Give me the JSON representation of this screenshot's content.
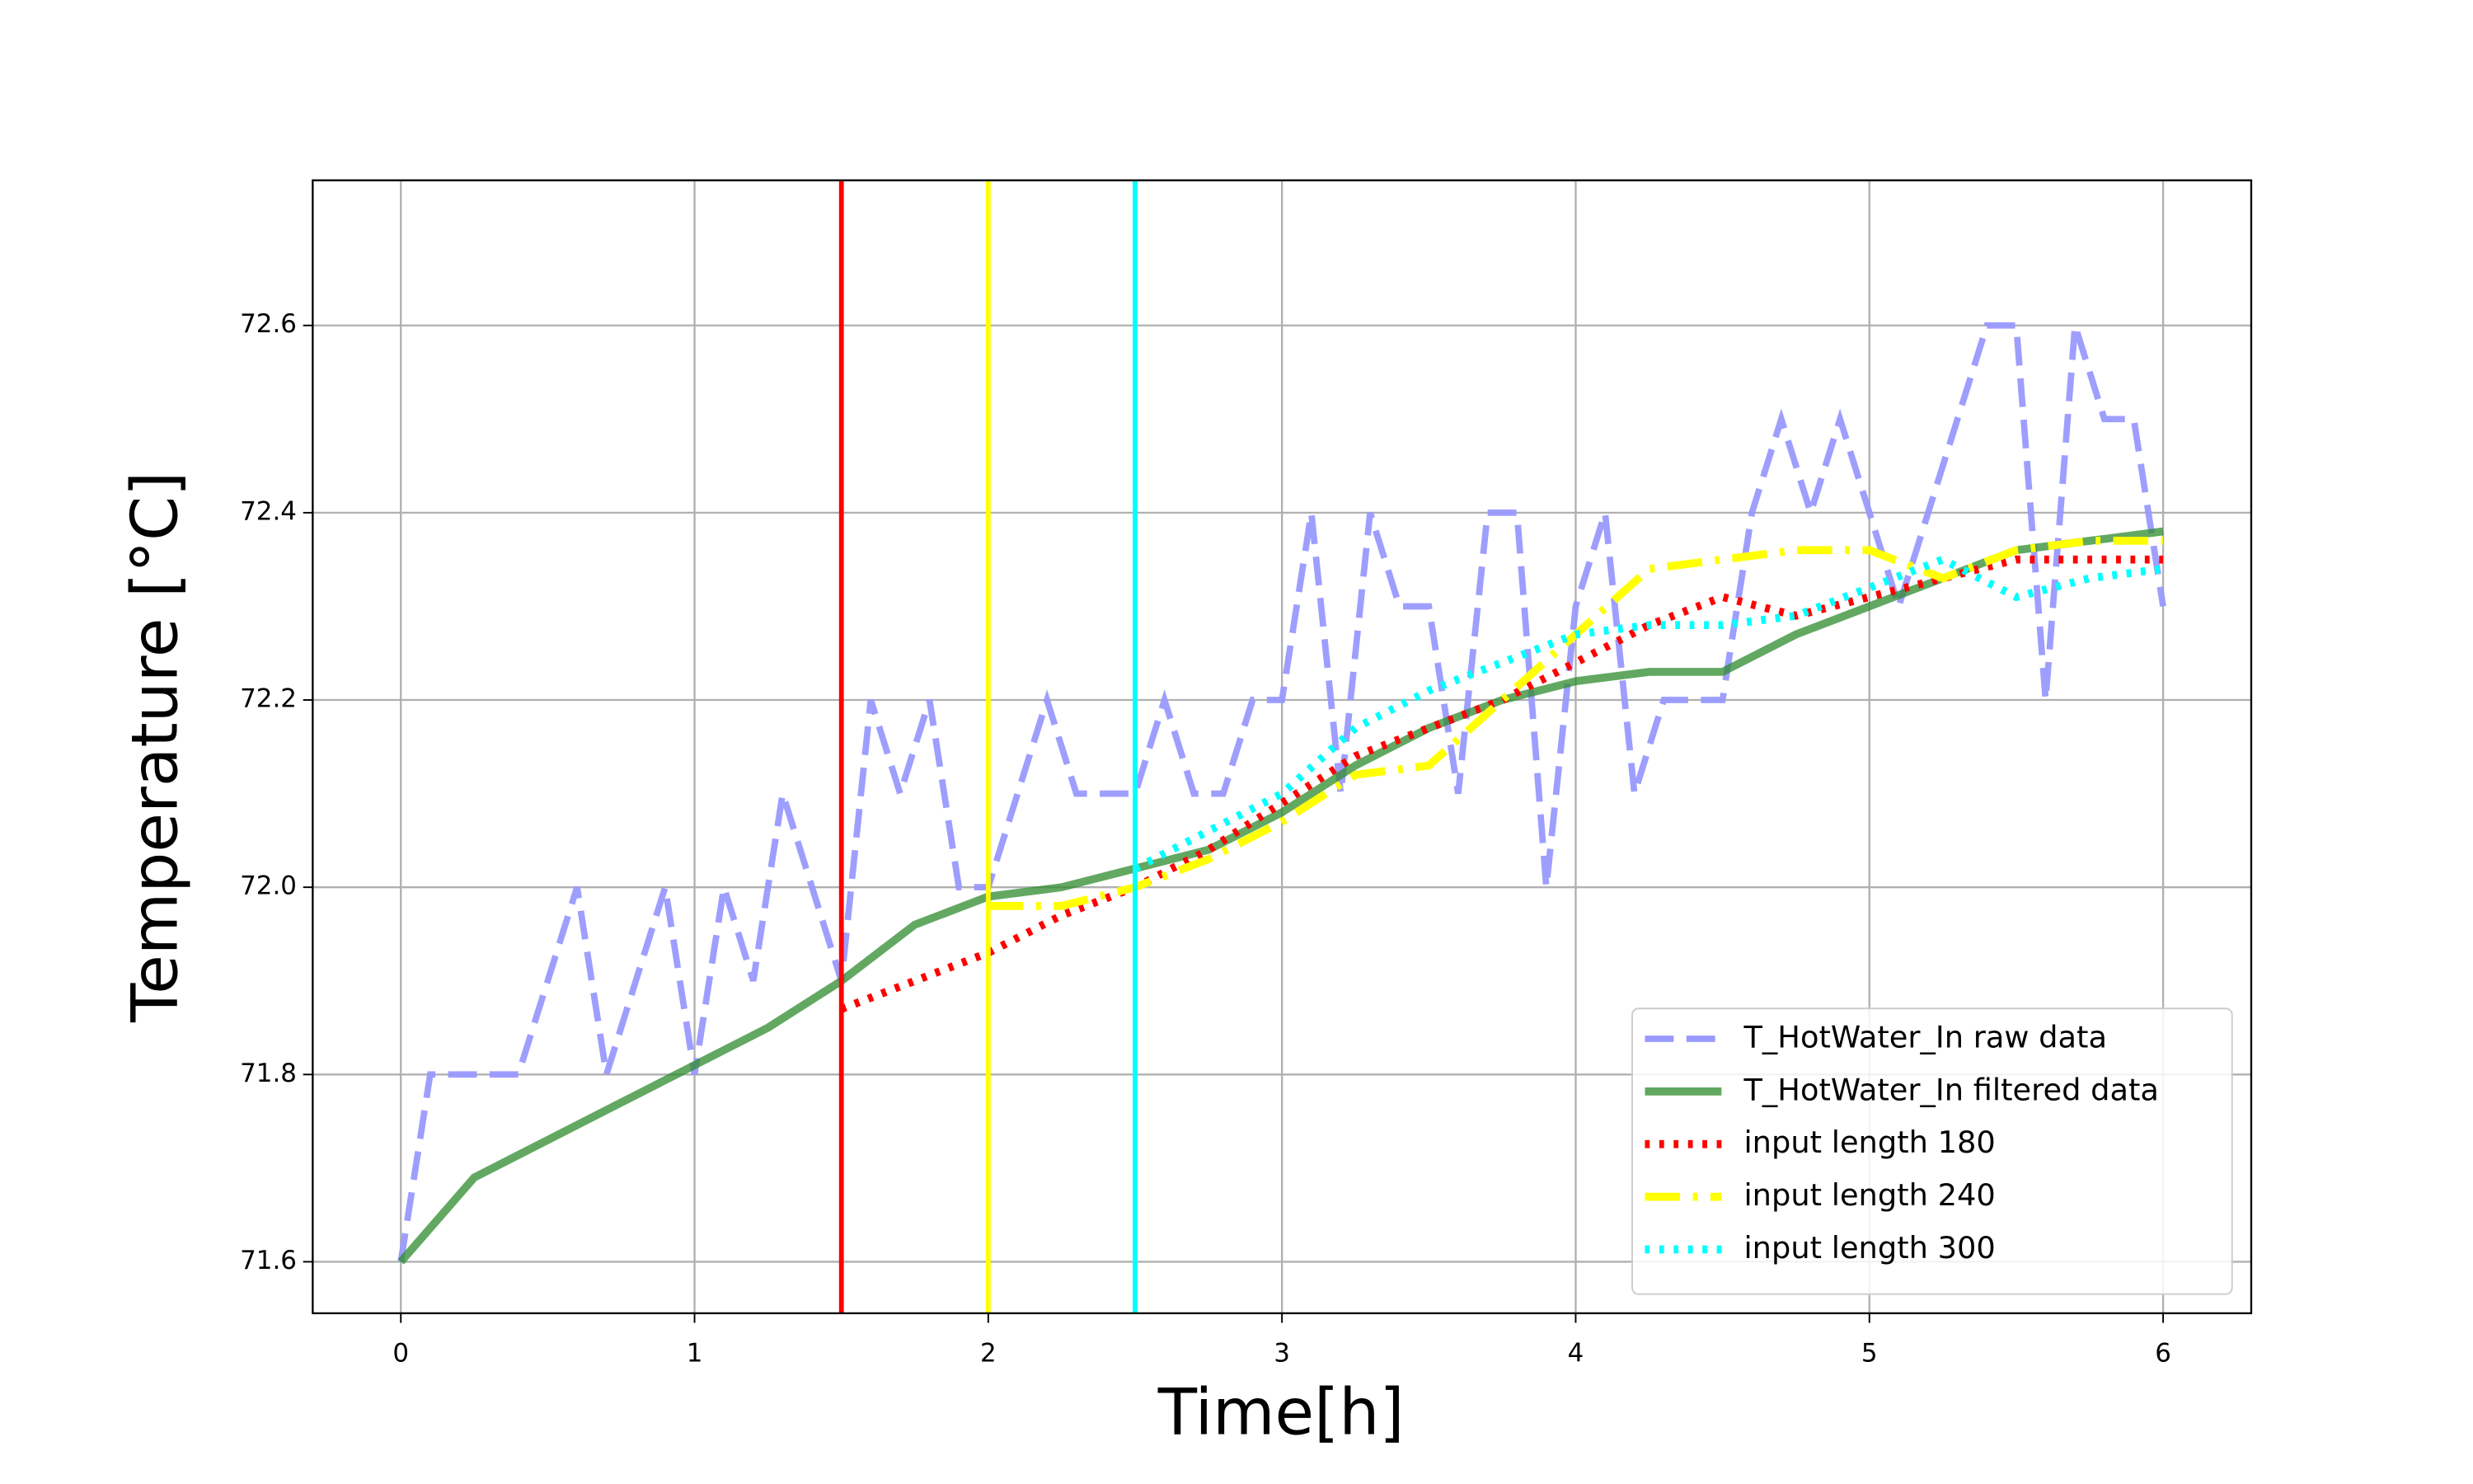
{
  "chart_data": {
    "type": "line",
    "x_label": "Time[h]",
    "y_label": "Temperature [°C]",
    "xlim": [
      -0.3,
      6.3
    ],
    "ylim": [
      71.545,
      72.755
    ],
    "xticks": [
      0,
      1,
      2,
      3,
      4,
      5,
      6
    ],
    "yticks": [
      71.6,
      71.8,
      {
        "value": 72,
        "label": "72.0"
      },
      72.2,
      72.4,
      72.6
    ],
    "grid": true,
    "legend": "lower right",
    "vlines": [
      {
        "x": 1.5,
        "color": "#ff0000"
      },
      {
        "x": 2,
        "color": "#ffff00"
      },
      {
        "x": 2.5,
        "color": "#00ffff"
      }
    ],
    "series": [
      {
        "name": "T_HotWater_In raw data",
        "color": "#9999ff",
        "style": "dashed",
        "x": [
          0,
          0.1,
          0.2,
          0.3,
          0.4,
          0.5,
          0.6,
          0.7,
          0.8,
          0.9,
          1,
          1.1,
          1.2,
          1.3,
          1.4,
          1.5,
          1.6,
          1.7,
          1.8,
          1.9,
          2,
          2.1,
          2.2,
          2.3,
          2.4,
          2.5,
          2.6,
          2.7,
          2.8,
          2.9,
          3,
          3.1,
          3.2,
          3.3,
          3.4,
          3.5,
          3.6,
          3.7,
          3.8,
          3.9,
          4,
          4.1,
          4.2,
          4.3,
          4.4,
          4.5,
          4.6,
          4.7,
          4.8,
          4.9,
          5,
          5.1,
          5.2,
          5.3,
          5.4,
          5.5,
          5.6,
          5.7,
          5.8,
          5.9,
          6
        ],
        "values": [
          71.6,
          71.8,
          71.8,
          71.8,
          71.8,
          71.9,
          72.0,
          71.8,
          71.9,
          72.0,
          71.8,
          72.0,
          71.9,
          72.1,
          72.0,
          71.9,
          72.2,
          72.1,
          72.2,
          72.0,
          72.0,
          72.1,
          72.2,
          72.1,
          72.1,
          72.1,
          72.2,
          72.1,
          72.1,
          72.2,
          72.2,
          72.4,
          72.1,
          72.4,
          72.3,
          72.3,
          72.1,
          72.4,
          72.4,
          72.0,
          72.3,
          72.4,
          72.1,
          72.2,
          72.2,
          72.2,
          72.4,
          72.5,
          72.4,
          72.5,
          72.4,
          72.3,
          72.4,
          72.5,
          72.6,
          72.6,
          72.2,
          72.6,
          72.5,
          72.5,
          72.3
        ]
      },
      {
        "name": "T_HotWater_In filtered data",
        "color": "#2e8b2e",
        "style": "solid",
        "x": [
          0,
          0.25,
          0.5,
          0.75,
          1,
          1.25,
          1.5,
          1.75,
          2,
          2.25,
          2.5,
          2.75,
          3,
          3.25,
          3.5,
          3.75,
          4,
          4.25,
          4.5,
          4.75,
          5,
          5.25,
          5.5,
          5.75,
          6
        ],
        "values": [
          71.6,
          71.69,
          71.73,
          71.77,
          71.81,
          71.85,
          71.9,
          71.96,
          71.99,
          72.0,
          72.02,
          72.04,
          72.08,
          72.13,
          72.17,
          72.2,
          72.22,
          72.23,
          72.23,
          72.27,
          72.3,
          72.33,
          72.36,
          72.37,
          72.38
        ]
      },
      {
        "name": "input length 180",
        "color": "#ff0000",
        "style": "dotted",
        "x": [
          1.5,
          1.75,
          2,
          2.25,
          2.5,
          2.75,
          3,
          3.25,
          3.5,
          3.75,
          4,
          4.25,
          4.5,
          4.75,
          5,
          5.25,
          5.5,
          5.75,
          6
        ],
        "values": [
          71.87,
          71.9,
          71.93,
          71.97,
          72.0,
          72.04,
          72.09,
          72.14,
          72.17,
          72.2,
          72.24,
          72.28,
          72.31,
          72.29,
          72.31,
          72.33,
          72.35,
          72.35,
          72.35
        ]
      },
      {
        "name": "input length 240",
        "color": "#ffff00",
        "style": "dashdot",
        "x": [
          2,
          2.25,
          2.5,
          2.75,
          3,
          3.25,
          3.5,
          3.75,
          4,
          4.25,
          4.5,
          4.75,
          5,
          5.25,
          5.5,
          5.75,
          6
        ],
        "values": [
          71.98,
          71.98,
          72.0,
          72.03,
          72.07,
          72.12,
          72.13,
          72.2,
          72.27,
          72.34,
          72.35,
          72.36,
          72.36,
          72.33,
          72.36,
          72.37,
          72.37
        ]
      },
      {
        "name": "input length 300",
        "color": "#00ffff",
        "style": "dotted",
        "x": [
          2.5,
          2.75,
          3,
          3.25,
          3.5,
          3.75,
          4,
          4.25,
          4.5,
          4.75,
          5,
          5.25,
          5.5,
          5.75,
          6
        ],
        "values": [
          72.02,
          72.06,
          72.1,
          72.17,
          72.21,
          72.24,
          72.27,
          72.28,
          72.28,
          72.29,
          72.32,
          72.35,
          72.31,
          72.33,
          72.34
        ]
      }
    ]
  }
}
